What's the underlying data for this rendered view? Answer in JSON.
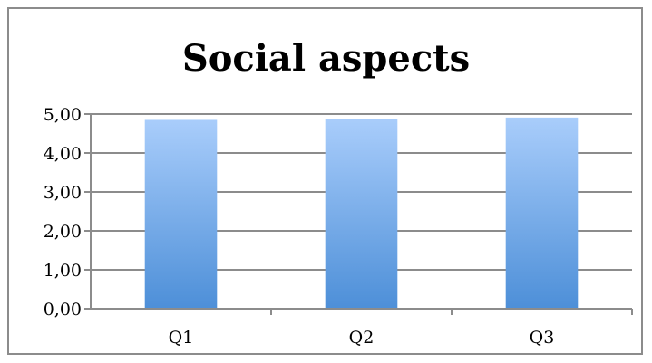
{
  "chart_data": {
    "type": "bar",
    "title": "Social aspects",
    "categories": [
      "Q1",
      "Q2",
      "Q3"
    ],
    "values": [
      4.85,
      4.88,
      4.91
    ],
    "ylim": [
      0,
      5
    ],
    "yticks": [
      0,
      1,
      2,
      3,
      4,
      5
    ],
    "ytick_labels": [
      "0,00",
      "1,00",
      "2,00",
      "3,00",
      "4,00",
      "5,00"
    ],
    "grid": true,
    "legend": "none",
    "xlabel": "",
    "ylabel": "",
    "colors": {
      "bar_top": "#a9cdfb",
      "bar_bottom": "#4d8fd8",
      "gridline": "#8c8c8c",
      "axis": "#8c8c8c"
    }
  }
}
